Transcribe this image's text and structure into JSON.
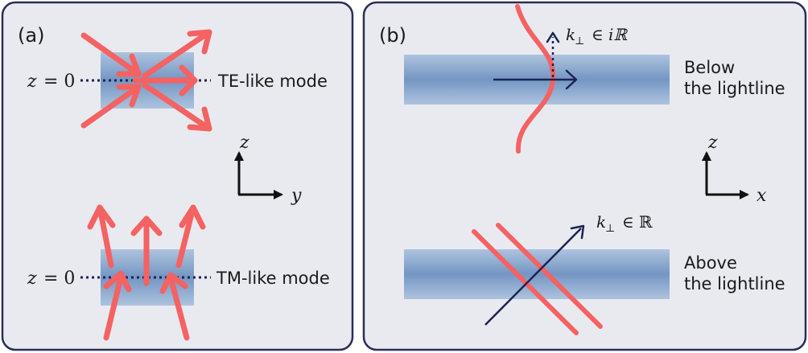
{
  "colors": {
    "panel_border": "#2a2f5a",
    "panel_fill": "#e9eaf0",
    "slab_edge": "#a9c0dc",
    "slab_center": "#7698c4",
    "field_arrow": "#f46262",
    "navy": "#1c2353"
  },
  "panel_a": {
    "label": "(a)",
    "te_z_prefix": "z",
    "te_z_eq": "= 0",
    "te_mode": "TE-like mode",
    "tm_z_prefix": "z",
    "tm_z_eq": "= 0",
    "tm_mode": "TM-like mode",
    "axis_vertical": "z",
    "axis_horizontal": "y"
  },
  "panel_b": {
    "label": "(b)",
    "below_line1": "Below",
    "below_line2": "the lightline",
    "above_line1": "Above",
    "above_line2": "the lightline",
    "k_top_k": "k",
    "k_top_sub": "⊥",
    "k_top_in": "∈",
    "k_top_set": "iℝ",
    "k_bot_k": "k",
    "k_bot_sub": "⊥",
    "k_bot_in": "∈",
    "k_bot_set": "ℝ",
    "axis_vertical": "z",
    "axis_horizontal": "x"
  }
}
